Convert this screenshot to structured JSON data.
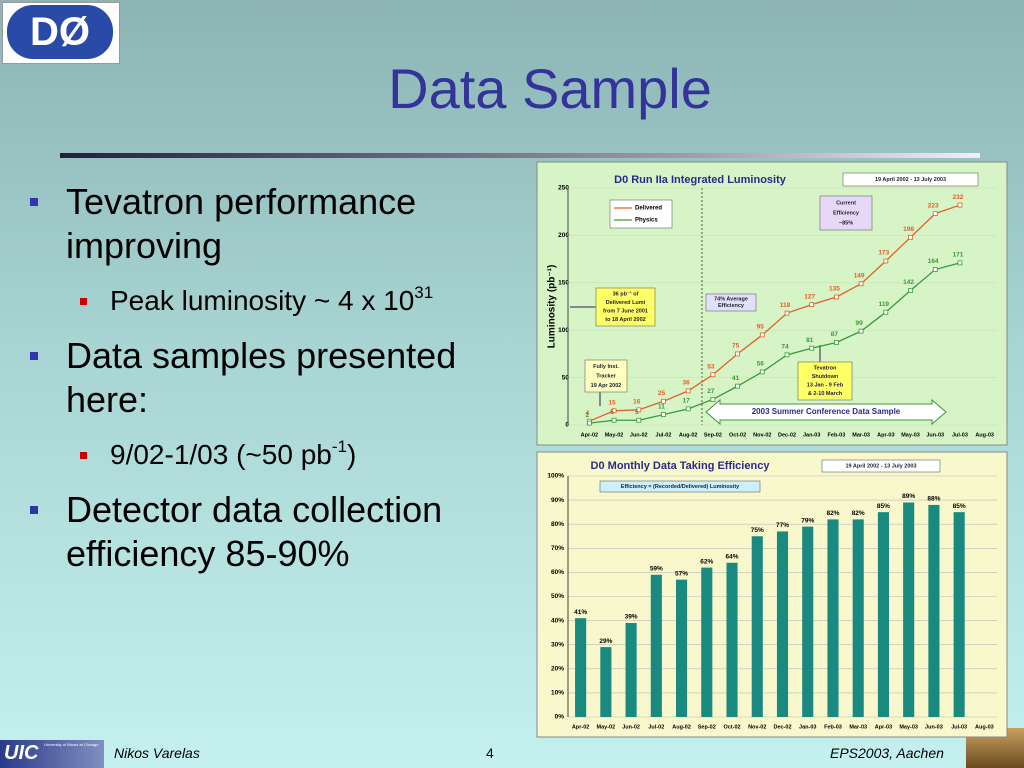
{
  "logo": "DØ",
  "title": "Data Sample",
  "bullets": [
    {
      "text": "Tevatron performance improving",
      "sub": [
        {
          "text": "Peak luminosity ~ 4 x 10",
          "sup": "31"
        }
      ]
    },
    {
      "text": "Data samples presented here:",
      "sub": [
        {
          "text": "9/02-1/03 (~50 pb",
          "sup": "-1",
          "after": ")"
        }
      ]
    },
    {
      "text": "Detector data collection efficiency 85-90%"
    }
  ],
  "footer": {
    "logo": "UIC",
    "logo_caption": "University of Illinois at Chicago",
    "author": "Nikos Varelas",
    "page": "4",
    "event": "EPS2003, Aachen"
  },
  "chart_data": [
    {
      "type": "line",
      "title": "D0 Run IIa Integrated Luminosity",
      "ylabel": "Luminosity (pb⁻¹)",
      "categories": [
        "Apr-02",
        "May-02",
        "Jun-02",
        "Jul-02",
        "Aug-02",
        "Sep-02",
        "Oct-02",
        "Nov-02",
        "Dec-02",
        "Jan-03",
        "Feb-03",
        "Mar-03",
        "Apr-03",
        "May-03",
        "Jun-03",
        "Jul-03",
        "Aug-03"
      ],
      "series": [
        {
          "name": "Delivered",
          "color": "#e0602a",
          "values": [
            4,
            15,
            16,
            25,
            36,
            53,
            75,
            95,
            118,
            127,
            135,
            149,
            173,
            198,
            223,
            232,
            null
          ]
        },
        {
          "name": "Physics",
          "color": "#3a9a3a",
          "values": [
            2,
            5,
            5,
            11,
            17,
            27,
            41,
            56,
            74,
            81,
            87,
            99,
            119,
            142,
            164,
            171,
            null
          ]
        }
      ],
      "ylim": [
        0,
        250
      ],
      "yticks": [
        0,
        50,
        100,
        150,
        200,
        250
      ],
      "grid": true,
      "annotations": [
        {
          "lines": [
            "19 April 2002 - 13 July 2003"
          ]
        },
        {
          "lines": [
            "Current",
            "Efficiency",
            "~85%"
          ]
        },
        {
          "lines": [
            "36 pb⁻¹ of",
            "Delivered Lumi",
            "from 7 June 2001",
            "to 18 April 2002"
          ]
        },
        {
          "lines": [
            "74% Average",
            "Efficiency"
          ]
        },
        {
          "lines": [
            "Fully Inst.",
            "Tracker",
            "19 Apr 2002"
          ]
        },
        {
          "lines": [
            "Tevatron",
            "Shutdown",
            "13 Jan - 9 Feb",
            "& 2-10 March"
          ]
        },
        {
          "lines": [
            "2003 Summer Conference Data Sample"
          ]
        }
      ]
    },
    {
      "type": "bar",
      "title": "D0 Monthly Data Taking Efficiency",
      "categories": [
        "Apr-02",
        "May-02",
        "Jun-02",
        "Jul-02",
        "Aug-02",
        "Sep-02",
        "Oct-02",
        "Nov-02",
        "Dec-02",
        "Jan-03",
        "Feb-03",
        "Mar-03",
        "Apr-03",
        "May-03",
        "Jun-03",
        "Jul-03",
        "Aug-03"
      ],
      "values": [
        41,
        29,
        39,
        59,
        57,
        62,
        64,
        75,
        77,
        79,
        82,
        82,
        85,
        89,
        88,
        85,
        null
      ],
      "value_labels": [
        "41%",
        "29%",
        "39%",
        "59%",
        "57%",
        "62%",
        "64%",
        "75%",
        "77%",
        "79%",
        "82%",
        "82%",
        "85%",
        "89%",
        "88%",
        "85%",
        null
      ],
      "color": "#1a8a80",
      "ylim": [
        0,
        100
      ],
      "yticks": [
        {
          "value": 0,
          "label": "0%"
        },
        {
          "value": 10,
          "label": "10%"
        },
        {
          "value": 20,
          "label": "20%"
        },
        {
          "value": 30,
          "label": "30%"
        },
        {
          "value": 40,
          "label": "40%"
        },
        {
          "value": 50,
          "label": "50%"
        },
        {
          "value": 60,
          "label": "60%"
        },
        {
          "value": 70,
          "label": "70%"
        },
        {
          "value": 80,
          "label": "80%"
        },
        {
          "value": 90,
          "label": "90%"
        },
        {
          "value": 100,
          "label": "100%"
        }
      ],
      "grid": true,
      "annotations": [
        {
          "lines": [
            "19 April 2002 - 13 July 2003"
          ]
        },
        {
          "lines": [
            "Efficiency = (Recorded/Delivered) Luminosity"
          ]
        }
      ]
    }
  ]
}
